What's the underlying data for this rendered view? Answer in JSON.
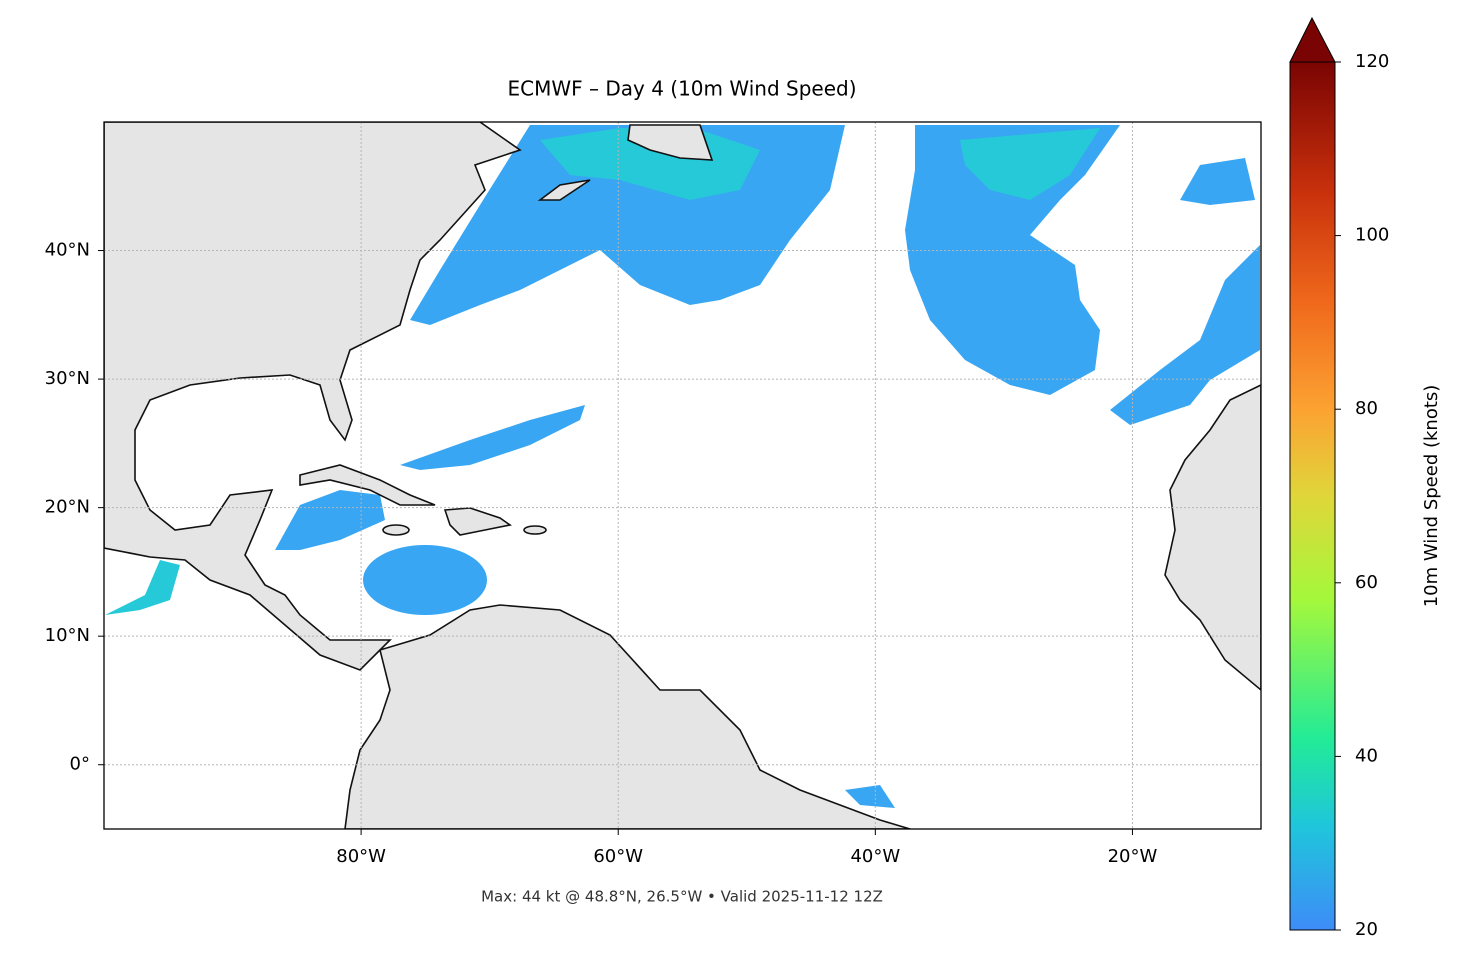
{
  "chart_data": {
    "type": "map",
    "title": "ECMWF – Day 4 (10m Wind Speed)",
    "note": "Max: 44 kt @ 48.8°N, 26.5°W • Valid 2025-11-12 12Z",
    "xlim": [
      -100,
      -10
    ],
    "ylim": [
      -5,
      50
    ],
    "xticks": [
      {
        "value": -80,
        "label": "80°W"
      },
      {
        "value": -60,
        "label": "60°W"
      },
      {
        "value": -40,
        "label": "40°W"
      },
      {
        "value": -20,
        "label": "20°W"
      }
    ],
    "yticks": [
      {
        "value": 0,
        "label": "0°"
      },
      {
        "value": 10,
        "label": "10°N"
      },
      {
        "value": 20,
        "label": "20°N"
      },
      {
        "value": 30,
        "label": "30°N"
      },
      {
        "value": 40,
        "label": "40°N"
      }
    ],
    "grid": true,
    "colorbar": {
      "label": "10m Wind Speed (knots)",
      "lim": [
        20,
        120
      ],
      "ticks": [
        20,
        40,
        60,
        80,
        100,
        120
      ],
      "extend": "max"
    }
  }
}
